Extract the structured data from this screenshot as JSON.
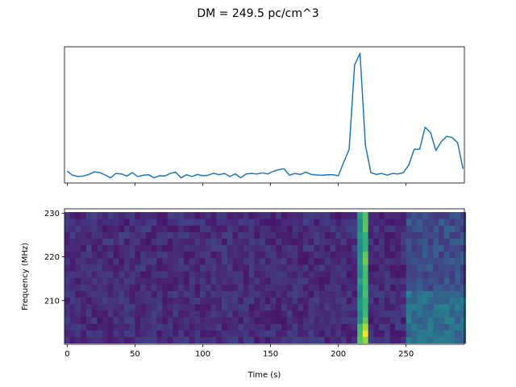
{
  "chart_data": [
    {
      "type": "line",
      "panel": "top",
      "title": "DM = 249.5 pc/cm^3",
      "xlabel": "",
      "ylabel": "",
      "xlim": [
        -2,
        293
      ],
      "ylim": [
        -0.25,
        5.0
      ],
      "show_x_tick_labels": false,
      "show_y_ticks": false,
      "color": "#1f77b4",
      "series": [
        {
          "x": [
            0,
            4,
            8,
            12,
            16,
            20,
            24,
            28,
            32,
            36,
            40,
            44,
            48,
            52,
            56,
            60,
            64,
            68,
            72,
            76,
            80,
            84,
            88,
            92,
            96,
            100,
            104,
            108,
            112,
            116,
            120,
            124,
            128,
            132,
            136,
            140,
            144,
            148,
            152,
            156,
            160,
            164,
            168,
            172,
            176,
            180,
            184,
            188,
            192,
            196,
            200,
            204,
            208,
            212,
            216,
            220,
            224,
            228,
            232,
            236,
            240,
            244,
            248,
            252,
            256,
            260,
            264,
            268,
            272,
            276,
            280,
            284,
            288,
            292
          ],
          "values": [
            0.2,
            0.05,
            0.0,
            0.02,
            0.08,
            0.18,
            0.15,
            0.06,
            -0.05,
            0.12,
            0.1,
            0.02,
            0.15,
            0.0,
            0.05,
            0.07,
            -0.05,
            0.03,
            0.02,
            0.12,
            0.17,
            -0.05,
            0.07,
            0.0,
            0.08,
            0.03,
            0.05,
            0.13,
            0.07,
            0.12,
            0.0,
            0.1,
            -0.05,
            0.1,
            0.12,
            0.1,
            0.14,
            0.1,
            0.2,
            0.26,
            0.3,
            0.05,
            0.12,
            0.08,
            0.17,
            0.08,
            0.06,
            0.05,
            0.07,
            0.07,
            0.03,
            0.55,
            1.05,
            4.3,
            4.75,
            1.2,
            0.15,
            0.08,
            0.12,
            0.05,
            0.12,
            0.1,
            0.15,
            0.45,
            1.05,
            1.05,
            1.9,
            1.7,
            1.0,
            1.35,
            1.55,
            1.5,
            1.3,
            0.3
          ]
        }
      ]
    },
    {
      "type": "heatmap",
      "panel": "bottom",
      "xlabel": "Time (s)",
      "ylabel": "Frequency (MHz)",
      "xlim": [
        -2,
        293
      ],
      "ylim": [
        200,
        231
      ],
      "xticks": [
        0,
        50,
        100,
        150,
        200,
        250
      ],
      "yticks": [
        210,
        220,
        230
      ],
      "colormap": "viridis",
      "cols": 74,
      "rows": 20,
      "x_start": -2,
      "cell_width": 4,
      "y_start": 200.25,
      "cell_height": 1.5,
      "pulse_columns": [
        {
          "col": 54,
          "level": 0.62
        },
        {
          "col": 55,
          "level": 0.78
        }
      ],
      "secondary_region": {
        "col_start": 63,
        "col_end": 73,
        "level": 0.3,
        "low_freq_boost": 0.15
      },
      "background_level": 0.16
    }
  ]
}
